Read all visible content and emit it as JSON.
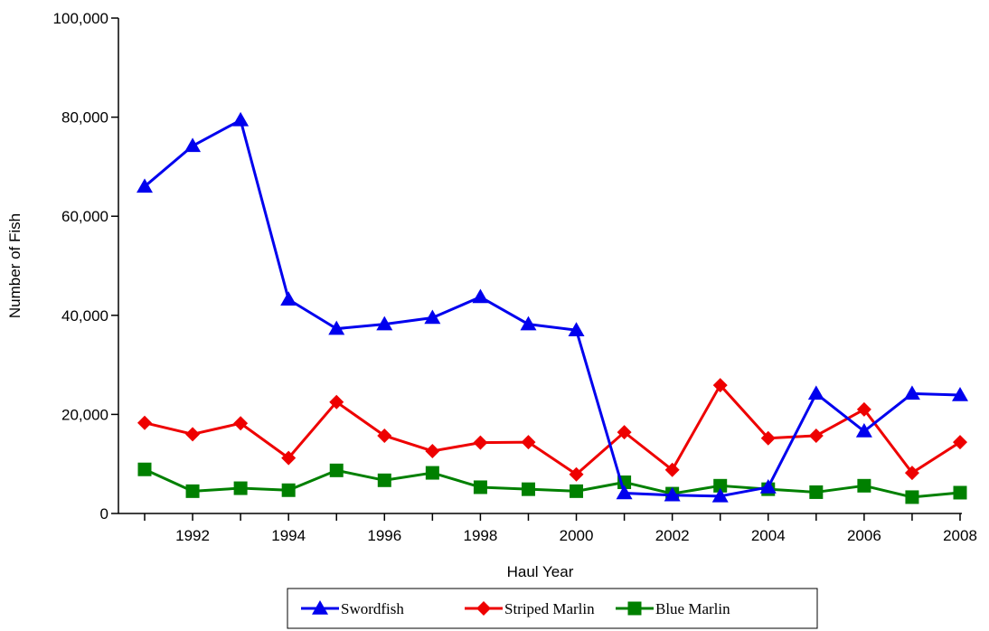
{
  "chart_data": {
    "type": "line",
    "title": "",
    "xlabel": "Haul Year",
    "ylabel": "Number of Fish",
    "xlim": [
      1991,
      2008
    ],
    "ylim": [
      0,
      100000
    ],
    "x_ticks": [
      1992,
      1994,
      1996,
      1998,
      2000,
      2002,
      2004,
      2006,
      2008
    ],
    "y_ticks": [
      0,
      20000,
      40000,
      60000,
      80000,
      100000
    ],
    "y_tick_labels": [
      "0",
      "20,000",
      "40,000",
      "60,000",
      "80,000",
      "100,000"
    ],
    "grid": false,
    "legend_position": "bottom",
    "x": [
      1991,
      1992,
      1993,
      1994,
      1995,
      1996,
      1997,
      1998,
      1999,
      2000,
      2001,
      2002,
      2003,
      2004,
      2005,
      2006,
      2007,
      2008
    ],
    "series": [
      {
        "name": "Swordfish",
        "color": "#0000ee",
        "marker": "triangle",
        "values": [
          66000,
          74200,
          79400,
          43200,
          37300,
          38200,
          39500,
          43700,
          38200,
          37000,
          4100,
          3700,
          3500,
          5300,
          24200,
          16600,
          24200,
          23900
        ]
      },
      {
        "name": "Striped Marlin",
        "color": "#ee0000",
        "marker": "diamond",
        "values": [
          18300,
          16000,
          18200,
          11200,
          22500,
          15700,
          12600,
          14300,
          14400,
          7900,
          16400,
          8800,
          25900,
          15200,
          15700,
          21000,
          8200,
          14400
        ]
      },
      {
        "name": "Blue Marlin",
        "color": "#008000",
        "marker": "square",
        "values": [
          8900,
          4500,
          5100,
          4700,
          8700,
          6700,
          8200,
          5300,
          4900,
          4500,
          6300,
          4000,
          5600,
          4900,
          4300,
          5600,
          3300,
          4200
        ]
      }
    ]
  }
}
